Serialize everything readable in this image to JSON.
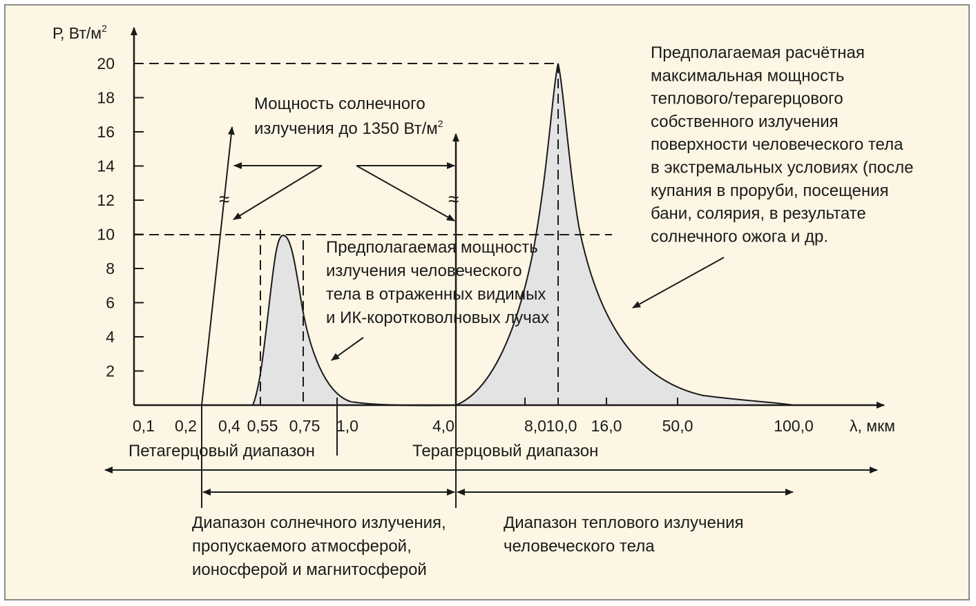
{
  "chart_data": {
    "type": "area",
    "y_axis_label": "Р, Вт/м",
    "y_axis_label_sup": "2",
    "x_axis_label": "λ, мкм",
    "y_ticks": [
      "2",
      "4",
      "6",
      "8",
      "10",
      "12",
      "14",
      "16",
      "18",
      "20"
    ],
    "x_ticks": [
      "0,1",
      "0,2",
      "0,4",
      "0,55",
      "0,75",
      "1,0",
      "4,0",
      "8,0",
      "10,0",
      "16,0",
      "50,0",
      "100,0"
    ],
    "ylim": [
      0,
      20
    ],
    "grid": false,
    "series": [
      {
        "peak_wavelength": "0,55",
        "peak_value": 10,
        "color": "#e3e3e3"
      },
      {
        "peak_wavelength": "10,0",
        "peak_value": 20,
        "color": "#e3e3e3"
      }
    ],
    "break_mark": "≈",
    "annotations": {
      "solar_power": [
        "Мощность солнечного",
        "излучения до 1350 Вт/м"
      ],
      "solar_power_sup": "2",
      "reflected_power": [
        "Предполагаемая мощность",
        "излучения человеческого",
        "тела в отраженных видимых",
        "и ИК-коротковолновых лучах"
      ],
      "thermal_power": [
        "Предполагаемая расчётная",
        "максимальная мощность",
        "теплового/терагерцового",
        "собственного излучения",
        "поверхности человеческого тела",
        "в экстремальных условиях (после",
        "купания в проруби, посещения",
        "бани, солярия, в результате",
        "солнечного ожога и др."
      ],
      "petahertz_range": "Петагерцовый диапазон",
      "terahertz_range": "Терагерцовый диапазон",
      "solar_range": [
        "Диапазон солнечного излучения,",
        "пропускаемого атмосферой,",
        "ионосферой и магнитосферой"
      ],
      "thermal_range": [
        "Диапазон теплового излучения",
        "человеческого тела"
      ]
    }
  }
}
